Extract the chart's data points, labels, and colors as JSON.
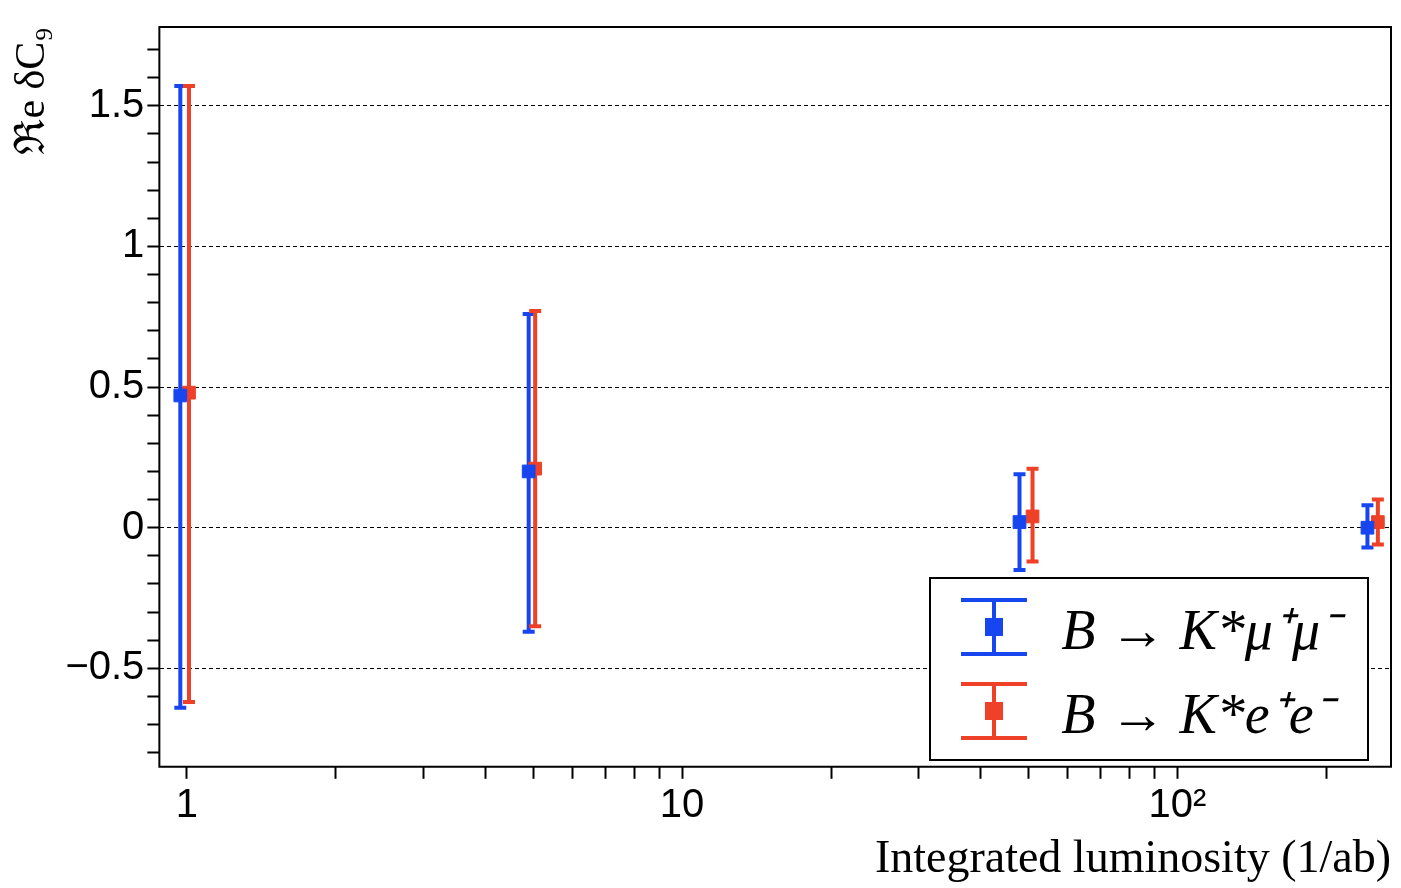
{
  "chart_data": {
    "type": "scatter",
    "xlabel": "Integrated luminosity (1/ab)",
    "ylabel": "ℜe δC₉",
    "log": "x",
    "xlim": [
      0.88,
      270
    ],
    "xticks": [
      1,
      {
        "value": 2,
        "label": null
      },
      {
        "value": 3,
        "label": null
      },
      {
        "value": 4,
        "label": null
      },
      {
        "value": 5,
        "label": null
      },
      {
        "value": 6,
        "label": null
      },
      {
        "value": 7,
        "label": null
      },
      {
        "value": 8,
        "label": null
      },
      {
        "value": 9,
        "label": null
      },
      10,
      {
        "value": 20,
        "label": null
      },
      {
        "value": 30,
        "label": null
      },
      {
        "value": 40,
        "label": null
      },
      {
        "value": 50,
        "label": null
      },
      {
        "value": 60,
        "label": null
      },
      {
        "value": 70,
        "label": null
      },
      {
        "value": 80,
        "label": null
      },
      {
        "value": 90,
        "label": null
      },
      {
        "value": 100,
        "label": "10²"
      },
      {
        "value": 200,
        "label": null
      }
    ],
    "ylim": [
      -0.85,
      1.78
    ],
    "yticks": [
      {
        "value": -0.8,
        "label": null
      },
      {
        "value": -0.7,
        "label": null
      },
      {
        "value": -0.6,
        "label": null
      },
      {
        "value": -0.5,
        "label": "−0.5"
      },
      {
        "value": -0.4,
        "label": null
      },
      {
        "value": -0.3,
        "label": null
      },
      {
        "value": -0.2,
        "label": null
      },
      {
        "value": -0.1,
        "label": null
      },
      0,
      {
        "value": 0.1,
        "label": null
      },
      {
        "value": 0.2,
        "label": null
      },
      {
        "value": 0.3,
        "label": null
      },
      {
        "value": 0.4,
        "label": null
      },
      0.5,
      {
        "value": 0.6,
        "label": null
      },
      {
        "value": 0.7,
        "label": null
      },
      {
        "value": 0.8,
        "label": null
      },
      {
        "value": 0.9,
        "label": null
      },
      1,
      {
        "value": 1.1,
        "label": null
      },
      {
        "value": 1.2,
        "label": null
      },
      {
        "value": 1.3,
        "label": null
      },
      {
        "value": 1.4,
        "label": null
      },
      1.5,
      {
        "value": 1.6,
        "label": null
      },
      {
        "value": 1.7,
        "label": null
      }
    ],
    "grid": "y",
    "legend": "bottom right",
    "marker": "square",
    "series": [
      {
        "name": "B → K*μ⁺μ⁻",
        "color": "#1746f0",
        "x": [
          0.97,
          4.9,
          48,
          242
        ],
        "values": [
          0.47,
          0.2,
          0.02,
          0.0
        ],
        "errors": [
          [
            -0.64,
            1.57
          ],
          [
            -0.37,
            0.76
          ],
          [
            -0.15,
            0.19
          ],
          [
            -0.07,
            0.08
          ]
        ]
      },
      {
        "name": "B → K*e⁺e⁻",
        "color": "#ee4128",
        "x": [
          1.01,
          5.05,
          51,
          254
        ],
        "values": [
          0.48,
          0.21,
          0.04,
          0.02
        ],
        "errors": [
          [
            -0.62,
            1.57
          ],
          [
            -0.35,
            0.77
          ],
          [
            -0.12,
            0.21
          ],
          [
            -0.06,
            0.1
          ]
        ]
      }
    ]
  }
}
